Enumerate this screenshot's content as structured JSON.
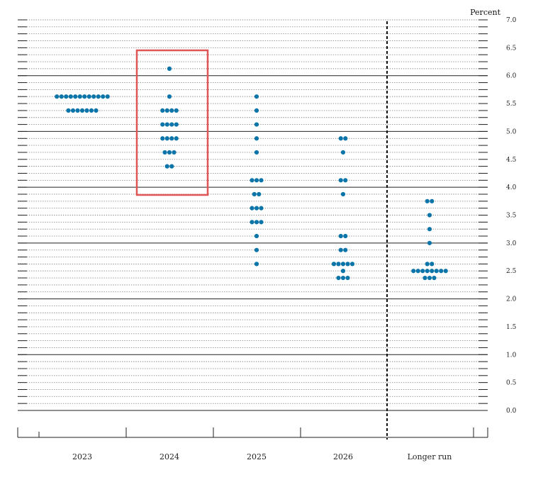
{
  "chart_data": {
    "type": "scatter",
    "unit_label": "Percent",
    "categories": [
      "2023",
      "2024",
      "2025",
      "2026",
      "Longer run"
    ],
    "ylim": [
      0,
      7
    ],
    "yticks": [
      "0.0",
      "0.5",
      "1.0",
      "1.5",
      "2.0",
      "2.5",
      "3.0",
      "3.5",
      "4.0",
      "4.5",
      "5.0",
      "5.5",
      "6.0",
      "6.5",
      "7.0"
    ],
    "grid": "dotted horizontal lines every 0.125, solid every 1.0",
    "divider_before": "Longer run",
    "highlight_category": "2024",
    "highlight_color": "#e05555",
    "dot_color": "#0b74a8",
    "points": {
      "2023": [
        {
          "y": 5.625,
          "n": 12
        },
        {
          "y": 5.375,
          "n": 7
        }
      ],
      "2024": [
        {
          "y": 6.125,
          "n": 1
        },
        {
          "y": 5.625,
          "n": 1
        },
        {
          "y": 5.375,
          "n": 4
        },
        {
          "y": 5.125,
          "n": 4
        },
        {
          "y": 4.875,
          "n": 4
        },
        {
          "y": 4.625,
          "n": 3
        },
        {
          "y": 4.375,
          "n": 2
        }
      ],
      "2025": [
        {
          "y": 5.625,
          "n": 1
        },
        {
          "y": 5.375,
          "n": 1
        },
        {
          "y": 5.125,
          "n": 1
        },
        {
          "y": 4.875,
          "n": 1
        },
        {
          "y": 4.625,
          "n": 1
        },
        {
          "y": 4.125,
          "n": 3
        },
        {
          "y": 3.875,
          "n": 2
        },
        {
          "y": 3.625,
          "n": 3
        },
        {
          "y": 3.375,
          "n": 3
        },
        {
          "y": 3.125,
          "n": 1
        },
        {
          "y": 2.875,
          "n": 1
        },
        {
          "y": 2.625,
          "n": 1
        }
      ],
      "2026": [
        {
          "y": 4.875,
          "n": 2
        },
        {
          "y": 4.625,
          "n": 1
        },
        {
          "y": 4.125,
          "n": 2
        },
        {
          "y": 3.875,
          "n": 1
        },
        {
          "y": 3.125,
          "n": 2
        },
        {
          "y": 2.875,
          "n": 2
        },
        {
          "y": 2.625,
          "n": 5
        },
        {
          "y": 2.5,
          "n": 1
        },
        {
          "y": 2.375,
          "n": 3
        }
      ],
      "Longer run": [
        {
          "y": 3.75,
          "n": 2
        },
        {
          "y": 3.5,
          "n": 1
        },
        {
          "y": 3.25,
          "n": 1
        },
        {
          "y": 3.0,
          "n": 1
        },
        {
          "y": 2.625,
          "n": 2
        },
        {
          "y": 2.5,
          "n": 8
        },
        {
          "y": 2.375,
          "n": 3
        }
      ]
    }
  }
}
